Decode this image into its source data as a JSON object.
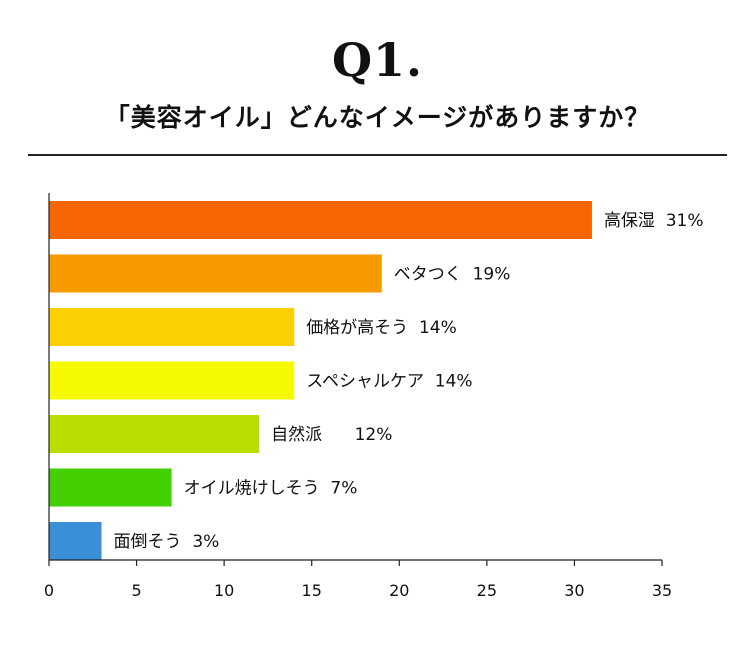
{
  "header": {
    "title": "Q1.",
    "subtitle": "「美容オイル」どんなイメージがありますか？"
  },
  "chart_data": {
    "type": "bar",
    "orientation": "horizontal",
    "title": "Q1.",
    "subtitle": "「美容オイル」どんなイメージがありますか？",
    "categories": [
      "高保湿",
      "ベタつく",
      "価格が高そう",
      "スペシャルケア",
      "自然派",
      "オイル焼けしそう",
      "面倒そう"
    ],
    "values": [
      31,
      19,
      14,
      14,
      12,
      7,
      3
    ],
    "data_labels": [
      "高保湿  31%",
      "ベタつく  19%",
      "価格が高そう  14%",
      "スペシャルケア  14%",
      "自然派      12%",
      "オイル焼けしそう  7%",
      "面倒そう  3%"
    ],
    "colors": [
      "#f56500",
      "#f79a00",
      "#fad000",
      "#f6fa00",
      "#b8df00",
      "#44d000",
      "#3a8fd6"
    ],
    "xlim": [
      0,
      35
    ],
    "xticks": [
      0,
      5,
      10,
      15,
      20,
      25,
      30,
      35
    ],
    "xlabel": "",
    "ylabel": "",
    "grid": false,
    "legend": "none"
  }
}
